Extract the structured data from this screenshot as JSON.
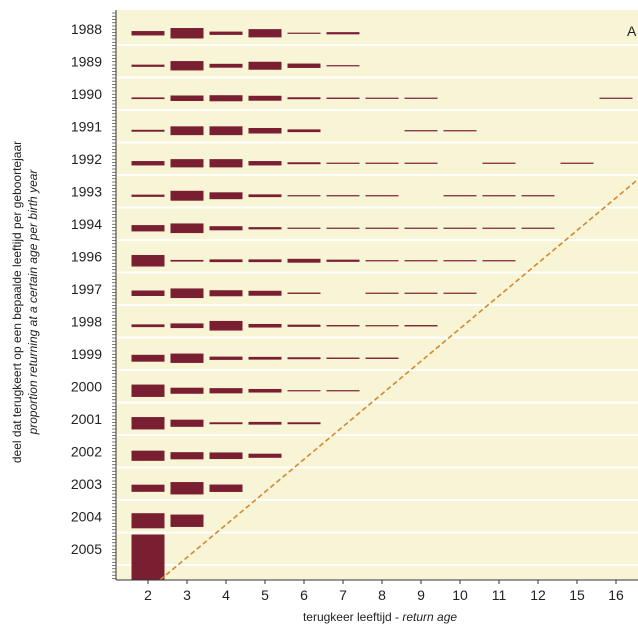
{
  "chart_data": {
    "type": "bar",
    "panel_label": "A",
    "xlabel": "terugkeer leeftijd",
    "xlabel_italic": "return age",
    "xlabel_separator": " - ",
    "ylabel": "deel dat terugkeert op een bepaalde leeftijd per geboortejaar",
    "ylabel_italic": "proportion returning at a certain age per birth year",
    "categories": [
      "2",
      "3",
      "4",
      "5",
      "6",
      "7",
      "8",
      "9",
      "10",
      "11",
      "12",
      "15",
      "16"
    ],
    "birth_years": [
      "1988",
      "1989",
      "1990",
      "1991",
      "1992",
      "1993",
      "1994",
      "1996",
      "1997",
      "1998",
      "1999",
      "2000",
      "2001",
      "2002",
      "2003",
      "2004",
      "2005"
    ],
    "ylim_per_row": [
      0,
      1
    ],
    "grid": true,
    "colors": {
      "bar": "#7a1e32",
      "background": "#f8f4d6",
      "diagonal": "#d4892e"
    },
    "rows": [
      {
        "year": "1988",
        "values": [
          0.16,
          0.38,
          0.12,
          0.3,
          0.03,
          0.08,
          0,
          0,
          0,
          0,
          0,
          0,
          0
        ]
      },
      {
        "year": "1989",
        "values": [
          0.08,
          0.34,
          0.14,
          0.29,
          0.16,
          0.03,
          0,
          0,
          0,
          0,
          0,
          0,
          0
        ]
      },
      {
        "year": "1990",
        "values": [
          0.06,
          0.2,
          0.22,
          0.18,
          0.07,
          0.05,
          0.03,
          0.03,
          0,
          0,
          0,
          0,
          0.03
        ]
      },
      {
        "year": "1991",
        "values": [
          0.07,
          0.32,
          0.32,
          0.2,
          0.1,
          0,
          0,
          0.03,
          0.03,
          0,
          0,
          0,
          0
        ]
      },
      {
        "year": "1992",
        "values": [
          0.16,
          0.3,
          0.3,
          0.16,
          0.07,
          0.03,
          0.03,
          0.03,
          0,
          0.03,
          0,
          0.03,
          0
        ]
      },
      {
        "year": "1993",
        "values": [
          0.08,
          0.36,
          0.25,
          0.1,
          0.03,
          0.03,
          0.03,
          0,
          0.03,
          0.03,
          0.03,
          0,
          0
        ]
      },
      {
        "year": "1994",
        "values": [
          0.23,
          0.35,
          0.15,
          0.08,
          0.03,
          0.03,
          0.03,
          0.03,
          0.03,
          0.03,
          0.03,
          0,
          0
        ]
      },
      {
        "year": "1996",
        "values": [
          0.42,
          0.06,
          0.1,
          0.1,
          0.14,
          0.08,
          0.03,
          0.03,
          0.03,
          0.03,
          0,
          0,
          0
        ]
      },
      {
        "year": "1997",
        "values": [
          0.2,
          0.35,
          0.22,
          0.18,
          0.05,
          0,
          0.03,
          0.03,
          0.03,
          0,
          0,
          0,
          0
        ]
      },
      {
        "year": "1998",
        "values": [
          0.1,
          0.17,
          0.35,
          0.13,
          0.08,
          0.05,
          0.03,
          0.05,
          0,
          0,
          0,
          0,
          0
        ]
      },
      {
        "year": "1999",
        "values": [
          0.25,
          0.34,
          0.12,
          0.1,
          0.07,
          0.05,
          0.05,
          0,
          0,
          0,
          0,
          0,
          0
        ]
      },
      {
        "year": "2000",
        "values": [
          0.45,
          0.22,
          0.19,
          0.13,
          0.03,
          0.03,
          0,
          0,
          0,
          0,
          0,
          0,
          0
        ]
      },
      {
        "year": "2001",
        "values": [
          0.45,
          0.26,
          0.07,
          0.1,
          0.07,
          0,
          0,
          0,
          0,
          0,
          0,
          0,
          0
        ]
      },
      {
        "year": "2002",
        "values": [
          0.37,
          0.26,
          0.24,
          0.15,
          0,
          0,
          0,
          0,
          0,
          0,
          0,
          0,
          0
        ]
      },
      {
        "year": "2003",
        "values": [
          0.26,
          0.45,
          0.27,
          0,
          0,
          0,
          0,
          0,
          0,
          0,
          0,
          0,
          0
        ]
      },
      {
        "year": "2004",
        "values": [
          0.55,
          0.45,
          0,
          0,
          0,
          0,
          0,
          0,
          0,
          0,
          0,
          0,
          0
        ]
      },
      {
        "year": "2005",
        "values": [
          1.0,
          0,
          0,
          0,
          0,
          0,
          0,
          0,
          0,
          0,
          0,
          0,
          0
        ]
      }
    ]
  }
}
